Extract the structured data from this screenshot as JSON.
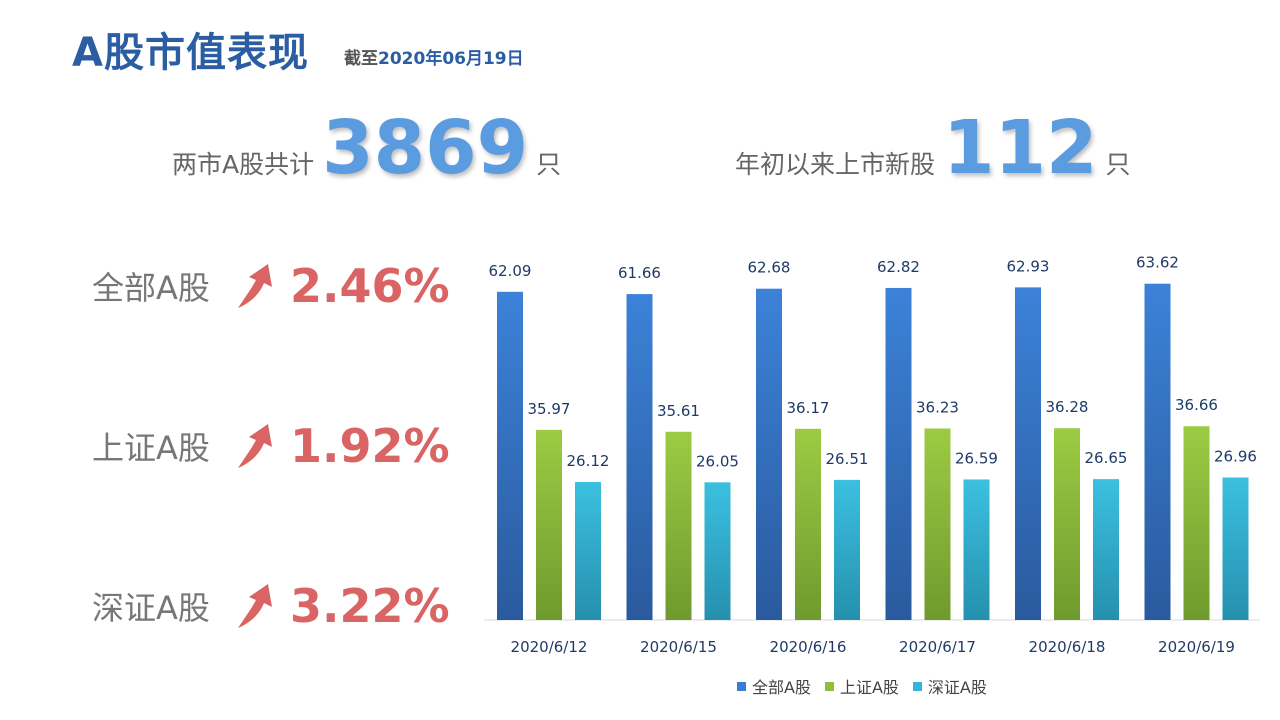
{
  "header": {
    "title": "A股市值表现",
    "subtitle_prefix": "截至",
    "subtitle_date": "2020年06月19日"
  },
  "stats": {
    "total_label": "两市A股共计",
    "total_value": "3869",
    "total_unit": "只",
    "new_label": "年初以来上市新股",
    "new_value": "112",
    "new_unit": "只"
  },
  "changes": [
    {
      "name": "全部A股",
      "pct": "2.46%"
    },
    {
      "name": "上证A股",
      "pct": "1.92%"
    },
    {
      "name": "深证A股",
      "pct": "3.22%"
    }
  ],
  "colors": {
    "accent": "#2b5da3",
    "up": "#d96463",
    "series": [
      "#3a7dd4",
      "#8dbf3b",
      "#33b3d8"
    ]
  },
  "chart_data": {
    "type": "bar",
    "categories": [
      "2020/6/12",
      "2020/6/15",
      "2020/6/16",
      "2020/6/17",
      "2020/6/18",
      "2020/6/19"
    ],
    "series": [
      {
        "name": "全部A股",
        "values": [
          62.09,
          61.66,
          62.68,
          62.82,
          62.93,
          63.62
        ]
      },
      {
        "name": "上证A股",
        "values": [
          35.97,
          35.61,
          36.17,
          36.23,
          36.28,
          36.66
        ]
      },
      {
        "name": "深证A股",
        "values": [
          26.12,
          26.05,
          26.51,
          26.59,
          26.65,
          26.96
        ]
      }
    ],
    "ylim": [
      0,
      70
    ],
    "grid": false,
    "legend": "bottom"
  }
}
